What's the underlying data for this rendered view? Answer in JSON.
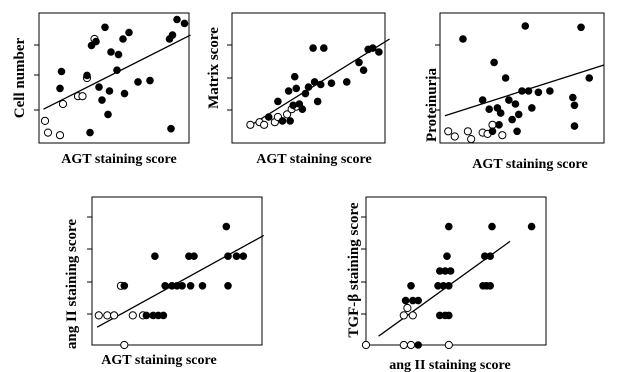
{
  "chart_data": [
    {
      "type": "scatter",
      "id": "p1",
      "xlabel": "AGT staining score",
      "ylabel": "Cell number",
      "xlim": [
        0,
        10
      ],
      "ylim": [
        0,
        10
      ],
      "open_points": [
        {
          "x": 0.4,
          "y": 1.7
        },
        {
          "x": 0.6,
          "y": 0.8
        },
        {
          "x": 1.4,
          "y": 0.6
        },
        {
          "x": 1.6,
          "y": 3.0
        },
        {
          "x": 2.6,
          "y": 3.6
        },
        {
          "x": 2.9,
          "y": 3.6
        },
        {
          "x": 3.2,
          "y": 5.0
        },
        {
          "x": 3.7,
          "y": 8.0
        }
      ],
      "filled_points": [
        {
          "x": 1.5,
          "y": 5.5
        },
        {
          "x": 1.4,
          "y": 4.2
        },
        {
          "x": 3.2,
          "y": 5.2
        },
        {
          "x": 3.4,
          "y": 0.8
        },
        {
          "x": 3.5,
          "y": 7.5
        },
        {
          "x": 3.8,
          "y": 7.8
        },
        {
          "x": 4.0,
          "y": 4.3
        },
        {
          "x": 4.2,
          "y": 3.3
        },
        {
          "x": 4.4,
          "y": 8.9
        },
        {
          "x": 4.6,
          "y": 2.2
        },
        {
          "x": 4.7,
          "y": 4.0
        },
        {
          "x": 4.8,
          "y": 7.0
        },
        {
          "x": 5.2,
          "y": 5.6
        },
        {
          "x": 5.3,
          "y": 6.8
        },
        {
          "x": 5.6,
          "y": 8.0
        },
        {
          "x": 5.7,
          "y": 3.8
        },
        {
          "x": 6.0,
          "y": 8.5
        },
        {
          "x": 6.6,
          "y": 4.7
        },
        {
          "x": 7.4,
          "y": 4.8
        },
        {
          "x": 8.7,
          "y": 8.0
        },
        {
          "x": 8.9,
          "y": 8.3
        },
        {
          "x": 9.2,
          "y": 9.5
        },
        {
          "x": 9.7,
          "y": 9.2
        },
        {
          "x": 8.8,
          "y": 1.1
        }
      ],
      "fit_line": [
        [
          0.3,
          2.6
        ],
        [
          10.1,
          8.3
        ]
      ]
    },
    {
      "type": "scatter",
      "id": "p2",
      "xlabel": "AGT staining score",
      "ylabel": "Matrix score",
      "xlim": [
        0,
        10
      ],
      "ylim": [
        0,
        10
      ],
      "open_points": [
        {
          "x": 1.2,
          "y": 1.4
        },
        {
          "x": 1.8,
          "y": 1.6
        },
        {
          "x": 2.1,
          "y": 1.4
        },
        {
          "x": 2.8,
          "y": 1.6
        },
        {
          "x": 3.0,
          "y": 2.0
        },
        {
          "x": 3.6,
          "y": 2.2
        },
        {
          "x": 3.9,
          "y": 2.6
        },
        {
          "x": 4.2,
          "y": 2.8
        }
      ],
      "filled_points": [
        {
          "x": 2.4,
          "y": 2.0
        },
        {
          "x": 3.0,
          "y": 3.2
        },
        {
          "x": 3.3,
          "y": 1.7
        },
        {
          "x": 3.7,
          "y": 4.0
        },
        {
          "x": 3.8,
          "y": 1.7
        },
        {
          "x": 4.0,
          "y": 2.9
        },
        {
          "x": 4.1,
          "y": 5.1
        },
        {
          "x": 4.2,
          "y": 4.2
        },
        {
          "x": 4.4,
          "y": 3.0
        },
        {
          "x": 4.6,
          "y": 2.6
        },
        {
          "x": 4.8,
          "y": 3.8
        },
        {
          "x": 5.0,
          "y": 4.3
        },
        {
          "x": 5.3,
          "y": 7.3
        },
        {
          "x": 5.4,
          "y": 4.7
        },
        {
          "x": 5.6,
          "y": 3.2
        },
        {
          "x": 5.8,
          "y": 4.5
        },
        {
          "x": 6.0,
          "y": 7.3
        },
        {
          "x": 6.5,
          "y": 4.6
        },
        {
          "x": 7.5,
          "y": 4.7
        },
        {
          "x": 8.6,
          "y": 5.6
        },
        {
          "x": 8.9,
          "y": 7.2
        },
        {
          "x": 9.2,
          "y": 7.3
        },
        {
          "x": 9.6,
          "y": 7.0
        },
        {
          "x": 8.3,
          "y": 6.2
        }
      ],
      "fit_line": [
        [
          1.0,
          1.2
        ],
        [
          10.3,
          8.0
        ]
      ]
    },
    {
      "type": "scatter",
      "id": "p3",
      "xlabel": "AGT staining score",
      "ylabel": "Proteinuria",
      "xlim": [
        0,
        10
      ],
      "ylim": [
        0,
        10
      ],
      "open_points": [
        {
          "x": 0.5,
          "y": 0.9
        },
        {
          "x": 0.9,
          "y": 0.5
        },
        {
          "x": 1.7,
          "y": 0.9
        },
        {
          "x": 1.9,
          "y": 0.3
        },
        {
          "x": 2.6,
          "y": 0.8
        },
        {
          "x": 2.9,
          "y": 0.7
        },
        {
          "x": 3.2,
          "y": 1.4
        },
        {
          "x": 3.8,
          "y": 0.6
        }
      ],
      "filled_points": [
        {
          "x": 1.4,
          "y": 8.0
        },
        {
          "x": 2.6,
          "y": 3.3
        },
        {
          "x": 3.0,
          "y": 2.6
        },
        {
          "x": 3.2,
          "y": 0.9
        },
        {
          "x": 3.3,
          "y": 6.2
        },
        {
          "x": 3.5,
          "y": 2.7
        },
        {
          "x": 3.6,
          "y": 1.4
        },
        {
          "x": 3.7,
          "y": 2.3
        },
        {
          "x": 4.0,
          "y": 5.0
        },
        {
          "x": 4.2,
          "y": 3.3
        },
        {
          "x": 4.4,
          "y": 1.8
        },
        {
          "x": 4.6,
          "y": 3.0
        },
        {
          "x": 4.7,
          "y": 0.9
        },
        {
          "x": 4.8,
          "y": 2.2
        },
        {
          "x": 5.0,
          "y": 4.0
        },
        {
          "x": 5.2,
          "y": 9.0
        },
        {
          "x": 5.4,
          "y": 4.0
        },
        {
          "x": 5.6,
          "y": 2.7
        },
        {
          "x": 6.0,
          "y": 3.9
        },
        {
          "x": 6.7,
          "y": 4.0
        },
        {
          "x": 8.1,
          "y": 3.5
        },
        {
          "x": 8.2,
          "y": 2.9
        },
        {
          "x": 8.2,
          "y": 1.3
        },
        {
          "x": 8.6,
          "y": 8.9
        },
        {
          "x": 9.1,
          "y": 5.0
        }
      ],
      "fit_line": [
        [
          0.3,
          2.1
        ],
        [
          10.0,
          6.0
        ]
      ]
    },
    {
      "type": "scatter",
      "id": "p4",
      "xlabel": "AGT staining score",
      "ylabel": "ang II staining score",
      "xlim": [
        0,
        10
      ],
      "ylim": [
        0,
        10
      ],
      "open_points": [
        {
          "x": 0.4,
          "y": 2.0
        },
        {
          "x": 0.9,
          "y": 2.0
        },
        {
          "x": 1.3,
          "y": 2.0
        },
        {
          "x": 1.9,
          "y": 0.0
        },
        {
          "x": 2.4,
          "y": 2.0
        },
        {
          "x": 3.0,
          "y": 2.0
        },
        {
          "x": 1.7,
          "y": 4.0
        }
      ],
      "filled_points": [
        {
          "x": 1.9,
          "y": 4.0
        },
        {
          "x": 3.2,
          "y": 2.0
        },
        {
          "x": 3.6,
          "y": 2.0
        },
        {
          "x": 3.9,
          "y": 2.0
        },
        {
          "x": 4.2,
          "y": 2.0
        },
        {
          "x": 4.3,
          "y": 4.0
        },
        {
          "x": 4.7,
          "y": 4.0
        },
        {
          "x": 5.0,
          "y": 4.0
        },
        {
          "x": 5.3,
          "y": 4.0
        },
        {
          "x": 5.8,
          "y": 4.0
        },
        {
          "x": 6.5,
          "y": 4.0
        },
        {
          "x": 3.7,
          "y": 6.0
        },
        {
          "x": 5.7,
          "y": 6.0
        },
        {
          "x": 6.0,
          "y": 6.0
        },
        {
          "x": 8.0,
          "y": 6.0
        },
        {
          "x": 8.5,
          "y": 6.0
        },
        {
          "x": 8.9,
          "y": 6.0
        },
        {
          "x": 7.9,
          "y": 8.0
        },
        {
          "x": 8.0,
          "y": 4.0
        }
      ],
      "fit_line": [
        [
          0.3,
          1.2
        ],
        [
          10.1,
          7.4
        ]
      ]
    },
    {
      "type": "scatter",
      "id": "p5",
      "xlabel": "ang II staining score",
      "ylabel": "TGF-β staining score",
      "xlim": [
        0,
        10
      ],
      "ylim": [
        0,
        10
      ],
      "open_points": [
        {
          "x": 0.0,
          "y": 0.0
        },
        {
          "x": 2.1,
          "y": 2.0
        },
        {
          "x": 2.3,
          "y": 2.5
        },
        {
          "x": 2.6,
          "y": 2.0
        },
        {
          "x": 2.1,
          "y": 0.0
        },
        {
          "x": 2.5,
          "y": 0.0
        },
        {
          "x": 4.6,
          "y": 0.0
        }
      ],
      "filled_points": [
        {
          "x": 2.2,
          "y": 3.0
        },
        {
          "x": 2.6,
          "y": 3.0
        },
        {
          "x": 2.9,
          "y": 3.0
        },
        {
          "x": 2.5,
          "y": 4.0
        },
        {
          "x": 2.9,
          "y": 0.0
        },
        {
          "x": 4.1,
          "y": 2.0
        },
        {
          "x": 4.4,
          "y": 2.0
        },
        {
          "x": 4.6,
          "y": 2.0
        },
        {
          "x": 4.0,
          "y": 4.0
        },
        {
          "x": 4.3,
          "y": 4.0
        },
        {
          "x": 4.6,
          "y": 4.0
        },
        {
          "x": 4.1,
          "y": 5.0
        },
        {
          "x": 4.4,
          "y": 5.0
        },
        {
          "x": 4.7,
          "y": 5.0
        },
        {
          "x": 4.5,
          "y": 6.0
        },
        {
          "x": 4.6,
          "y": 8.0
        },
        {
          "x": 6.5,
          "y": 4.0
        },
        {
          "x": 6.7,
          "y": 4.0
        },
        {
          "x": 6.9,
          "y": 4.0
        },
        {
          "x": 6.6,
          "y": 6.0
        },
        {
          "x": 6.9,
          "y": 6.0
        },
        {
          "x": 7.0,
          "y": 8.0
        },
        {
          "x": 9.2,
          "y": 8.0
        }
      ],
      "fit_line": [
        [
          0.7,
          0.6
        ],
        [
          8.0,
          7.0
        ]
      ]
    }
  ]
}
